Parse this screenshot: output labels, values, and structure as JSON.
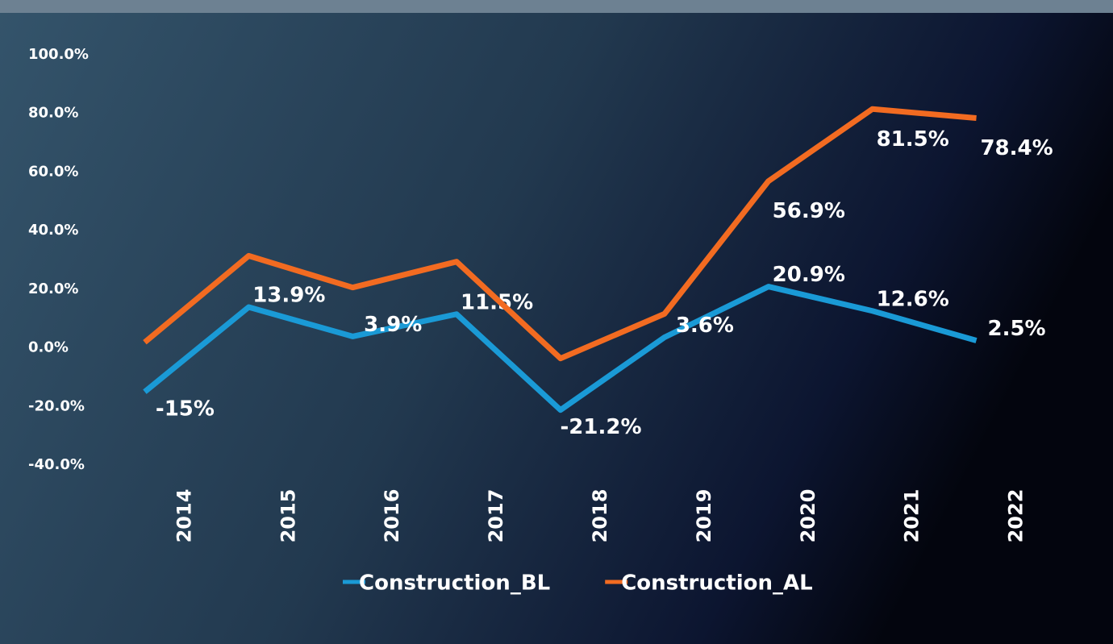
{
  "chart_data": {
    "type": "line",
    "categories": [
      "2014",
      "2015",
      "2016",
      "2017",
      "2018",
      "2019",
      "2020",
      "2021",
      "2022"
    ],
    "series": [
      {
        "name": "Construction_BL",
        "color": "#1a9ad6",
        "values": [
          -15,
          13.9,
          3.9,
          11.5,
          -21.2,
          3.6,
          20.9,
          12.6,
          2.5
        ],
        "value_labels": [
          "-15%",
          "13.9%",
          "3.9%",
          "11.5%",
          "-21.2%",
          "3.6%",
          "20.9%",
          "12.6%",
          "2.5%"
        ]
      },
      {
        "name": "Construction_AL",
        "color": "#f26b21",
        "values": [
          1.9,
          31.4,
          20.6,
          29.4,
          -3.6,
          11.6,
          56.9,
          81.5,
          78.4
        ],
        "value_labels": [
          null,
          null,
          null,
          null,
          null,
          null,
          "56.9%",
          "81.5%",
          "78.4%"
        ]
      }
    ],
    "ylim": [
      -40,
      100
    ],
    "yticks": [
      {
        "value": -40,
        "label": "-40.0%"
      },
      {
        "value": -20,
        "label": "-20.0%"
      },
      {
        "value": 0,
        "label": "0.0%"
      },
      {
        "value": 20,
        "label": "20.0%"
      },
      {
        "value": 40,
        "label": "40.0%"
      },
      {
        "value": 60,
        "label": "60.0%"
      },
      {
        "value": 80,
        "label": "80.0%"
      },
      {
        "value": 100,
        "label": "100.0%"
      }
    ],
    "grid": false,
    "legend": "bottom"
  }
}
